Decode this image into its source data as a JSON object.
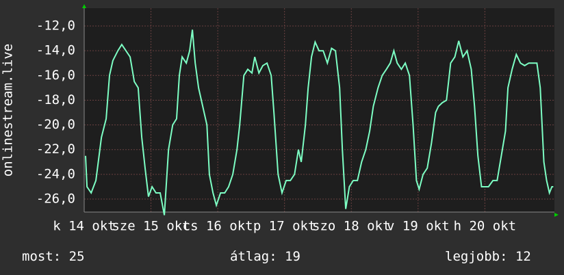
{
  "chart_data": {
    "type": "line",
    "ylabel": "onlinestream.live",
    "color": "#7dffc4",
    "grid": true,
    "xlim": [
      0,
      169
    ],
    "ylim": [
      -27.05,
      -10.56
    ],
    "xticks": [
      {
        "value": 0,
        "label": "k 14 okt"
      },
      {
        "value": 24,
        "label": "sze 15 okt"
      },
      {
        "value": 48,
        "label": "cs 16 okt"
      },
      {
        "value": 72,
        "label": "p 17 okt"
      },
      {
        "value": 96,
        "label": "szo 18 okt"
      },
      {
        "value": 120,
        "label": "v 19 okt"
      },
      {
        "value": 144,
        "label": "h 20 okt"
      }
    ],
    "yticks": [
      {
        "value": -26,
        "label": "-26,0"
      },
      {
        "value": -24,
        "label": "-24,0"
      },
      {
        "value": -22,
        "label": "-22,0"
      },
      {
        "value": -20,
        "label": "-20,0"
      },
      {
        "value": -18,
        "label": "-18,0"
      },
      {
        "value": -16,
        "label": "-16,0"
      },
      {
        "value": -14,
        "label": "-14,0"
      },
      {
        "value": -12,
        "label": "-12,0"
      }
    ],
    "x": [
      0.5,
      1.0,
      2.5,
      4.2,
      6.2,
      7.9,
      9.1,
      10.3,
      12.1,
      13.5,
      15.0,
      16.5,
      18.0,
      19.4,
      20.7,
      21.9,
      23.1,
      24.4,
      25.8,
      27.3,
      28.8,
      30.3,
      31.8,
      33.2,
      34.2,
      35.2,
      36.7,
      37.9,
      38.9,
      39.9,
      41.1,
      42.6,
      44.1,
      45.0,
      46.3,
      47.5,
      49.0,
      50.5,
      51.9,
      53.4,
      54.9,
      55.9,
      57.4,
      58.8,
      60.3,
      61.3,
      62.8,
      64.2,
      65.7,
      67.2,
      68.2,
      69.7,
      71.1,
      72.6,
      74.1,
      75.6,
      77.0,
      78.0,
      79.5,
      80.5,
      81.7,
      83.0,
      84.4,
      85.9,
      87.4,
      88.9,
      90.3,
      91.8,
      92.8,
      94.0,
      95.3,
      96.7,
      98.2,
      99.7,
      101.2,
      102.6,
      103.9,
      105.6,
      107.1,
      108.6,
      110.0,
      111.3,
      112.5,
      114.0,
      115.4,
      116.9,
      118.2,
      119.4,
      120.4,
      121.8,
      123.3,
      124.8,
      126.3,
      127.3,
      128.7,
      130.2,
      131.7,
      133.2,
      134.6,
      136.1,
      137.6,
      139.1,
      140.3,
      141.5,
      142.8,
      144.0,
      145.3,
      146.9,
      148.4,
      149.9,
      151.4,
      152.3,
      153.8,
      155.3,
      156.8,
      158.3,
      159.8,
      161.2,
      162.7,
      163.9,
      165.2,
      166.2,
      167.2,
      168.1,
      168.6
    ],
    "values": [
      -22.5,
      -25,
      -25.5,
      -24.5,
      -21,
      -19.5,
      -16,
      -14.8,
      -14,
      -13.5,
      -14,
      -14.5,
      -16.5,
      -17,
      -21,
      -23.5,
      -25.8,
      -25,
      -25.5,
      -25.5,
      -27.3,
      -22,
      -20,
      -19.5,
      -16,
      -14.5,
      -15,
      -14,
      -12.3,
      -15,
      -17,
      -18.5,
      -20,
      -24,
      -25.5,
      -26.5,
      -25.5,
      -25.5,
      -25,
      -24,
      -22,
      -20,
      -16,
      -15.5,
      -15.8,
      -14.5,
      -15.8,
      -15.2,
      -15,
      -16,
      -19,
      -24,
      -25.5,
      -24.5,
      -24.5,
      -24,
      -22,
      -23,
      -20,
      -17,
      -14.5,
      -13.3,
      -14,
      -14,
      -15,
      -13.8,
      -14,
      -17,
      -22,
      -26.8,
      -25,
      -24.5,
      -24.5,
      -23,
      -22,
      -20.5,
      -18.5,
      -17,
      -16,
      -15.5,
      -15,
      -14,
      -15,
      -15.5,
      -15,
      -16,
      -20,
      -24.5,
      -25.2,
      -24,
      -23.5,
      -21.5,
      -19,
      -18.5,
      -18.2,
      -18,
      -15,
      -14.5,
      -13.2,
      -14.5,
      -14,
      -15.5,
      -18.5,
      -22.5,
      -25,
      -25,
      -25,
      -24.5,
      -24.5,
      -22.5,
      -20.5,
      -17,
      -15.5,
      -14.3,
      -15,
      -15.2,
      -15,
      -15,
      -15,
      -17,
      -23,
      -24.5,
      -25.5,
      -25,
      -25
    ],
    "stats": [
      {
        "label": "most:",
        "value": 25
      },
      {
        "label": "átlag:",
        "value": 19
      },
      {
        "label": "legjobb:",
        "value": 12
      }
    ]
  }
}
